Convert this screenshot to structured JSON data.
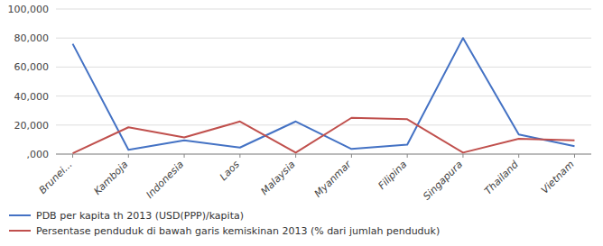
{
  "chart_data": {
    "type": "line",
    "categories": [
      "Brunei...",
      "Kamboja",
      "Indonesia",
      "Laos",
      "Malaysia",
      "Myanmar",
      "Filipina",
      "Singapura",
      "Thailand",
      "Vietnam"
    ],
    "series": [
      {
        "name": "PDB per kapita th 2013 (USD(PPP)/kapita)",
        "color": "#4472C4",
        "values": [
          76000,
          3000,
          9500,
          4500,
          22500,
          3500,
          6500,
          80000,
          13500,
          5500
        ]
      },
      {
        "name": "Persentase penduduk di bawah garis kemiskinan 2013 (% dari jumlah penduduk)",
        "color": "#C0504D",
        "values": [
          500,
          18500,
          11500,
          22500,
          1000,
          25000,
          24000,
          1000,
          10500,
          9500
        ]
      }
    ],
    "ylim": [
      0,
      100000
    ],
    "yticks": [
      {
        "value": 0,
        "label": ",000"
      },
      {
        "value": 20000,
        "label": "20,000"
      },
      {
        "value": 40000,
        "label": "40,000"
      },
      {
        "value": 60000,
        "label": "60,000"
      },
      {
        "value": 80000,
        "label": "80,000"
      },
      {
        "value": 100000,
        "label": "100,000"
      }
    ],
    "grid": true,
    "legend": "lower left"
  }
}
